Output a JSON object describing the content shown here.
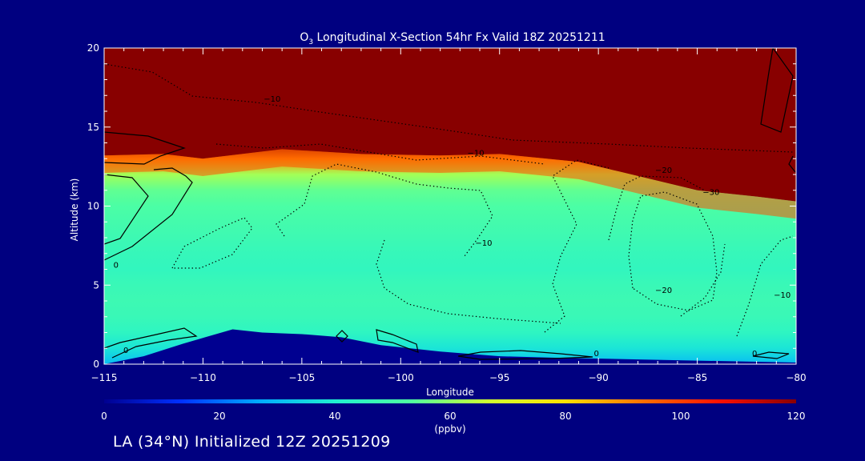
{
  "chart_data": {
    "type": "heatmap",
    "title_prefix": "O",
    "title_subscript": "3",
    "title_rest": " Longitudinal X-Section 54hr  Fx Valid 18Z 20251211",
    "xlabel": "Longitude",
    "ylabel": "Altitude (km)",
    "xlim": [
      -115,
      -80
    ],
    "ylim": [
      0,
      20
    ],
    "x_ticks": [
      -115,
      -110,
      -105,
      -100,
      -95,
      -90,
      -85,
      -80
    ],
    "x_tick_labels": [
      "−115",
      "−110",
      "−105",
      "−100",
      "−95",
      "−90",
      "−85",
      "−80"
    ],
    "y_ticks": [
      0,
      5,
      10,
      15,
      20
    ],
    "y_tick_labels": [
      "0",
      "5",
      "10",
      "15",
      "20"
    ],
    "colorbar": {
      "label": "(ppbv)",
      "range": [
        0,
        120
      ],
      "ticks": [
        0,
        20,
        40,
        60,
        80,
        100,
        120
      ],
      "tick_labels": [
        "0",
        "20",
        "40",
        "60",
        "80",
        "100",
        "120"
      ],
      "colors": [
        "#000090",
        "#0030ff",
        "#00aaff",
        "#20f0d0",
        "#50ffa0",
        "#d0ff30",
        "#ffe000",
        "#ff7000",
        "#ff1000",
        "#880000"
      ]
    },
    "background_color": "#000080",
    "ozone_profile": {
      "note_values": "ozone mixing ratio (ppbv) by altitude (km)",
      "altitude": [
        0,
        1,
        2,
        3,
        4,
        5,
        6,
        7,
        8,
        9,
        10,
        11,
        12,
        13,
        14,
        20
      ],
      "ppbv": [
        30,
        38,
        44,
        47,
        48,
        47,
        45,
        46,
        48,
        50,
        52,
        55,
        62,
        90,
        120,
        120
      ]
    },
    "tropopause_km": [
      {
        "lon": -115,
        "alt": 13.2
      },
      {
        "lon": -112,
        "alt": 13.3
      },
      {
        "lon": -110,
        "alt": 13.0
      },
      {
        "lon": -106,
        "alt": 13.6
      },
      {
        "lon": -102,
        "alt": 13.3
      },
      {
        "lon": -98,
        "alt": 13.2
      },
      {
        "lon": -95,
        "alt": 13.3
      },
      {
        "lon": -91,
        "alt": 12.8
      },
      {
        "lon": -89,
        "alt": 12.2
      },
      {
        "lon": -85,
        "alt": 11.0
      },
      {
        "lon": -82,
        "alt": 10.6
      },
      {
        "lon": -80,
        "alt": 10.3
      }
    ],
    "terrain_km": [
      {
        "lon": -115,
        "alt": 0.0
      },
      {
        "lon": -113,
        "alt": 0.5
      },
      {
        "lon": -111,
        "alt": 1.3
      },
      {
        "lon": -108.5,
        "alt": 2.2
      },
      {
        "lon": -107,
        "alt": 2.0
      },
      {
        "lon": -105,
        "alt": 1.9
      },
      {
        "lon": -103,
        "alt": 1.7
      },
      {
        "lon": -101,
        "alt": 1.2
      },
      {
        "lon": -98,
        "alt": 0.8
      },
      {
        "lon": -95,
        "alt": 0.5
      },
      {
        "lon": -92,
        "alt": 0.4
      },
      {
        "lon": -88,
        "alt": 0.3
      },
      {
        "lon": -84,
        "alt": 0.2
      },
      {
        "lon": -80,
        "alt": 0.1
      }
    ],
    "contour_labels": [
      {
        "text": "−10",
        "lon": -106.5,
        "alt": 16.6
      },
      {
        "text": "−10",
        "lon": -96.2,
        "alt": 13.2
      },
      {
        "text": "−20",
        "lon": -86.7,
        "alt": 12.1
      },
      {
        "text": "−30",
        "lon": -84.3,
        "alt": 10.7
      },
      {
        "text": "−10",
        "lon": -95.8,
        "alt": 7.5
      },
      {
        "text": "−20",
        "lon": -86.7,
        "alt": 4.5
      },
      {
        "text": "−10",
        "lon": -80.7,
        "alt": 4.2
      },
      {
        "text": "0",
        "lon": -114.4,
        "alt": 6.1
      },
      {
        "text": "0",
        "lon": -113.9,
        "alt": 0.7
      },
      {
        "text": "0",
        "lon": -90.1,
        "alt": 0.5
      },
      {
        "text": "0",
        "lon": -82.1,
        "alt": 0.5
      }
    ]
  },
  "footer_text": "LA (34°N) Initialized 12Z 20251209"
}
